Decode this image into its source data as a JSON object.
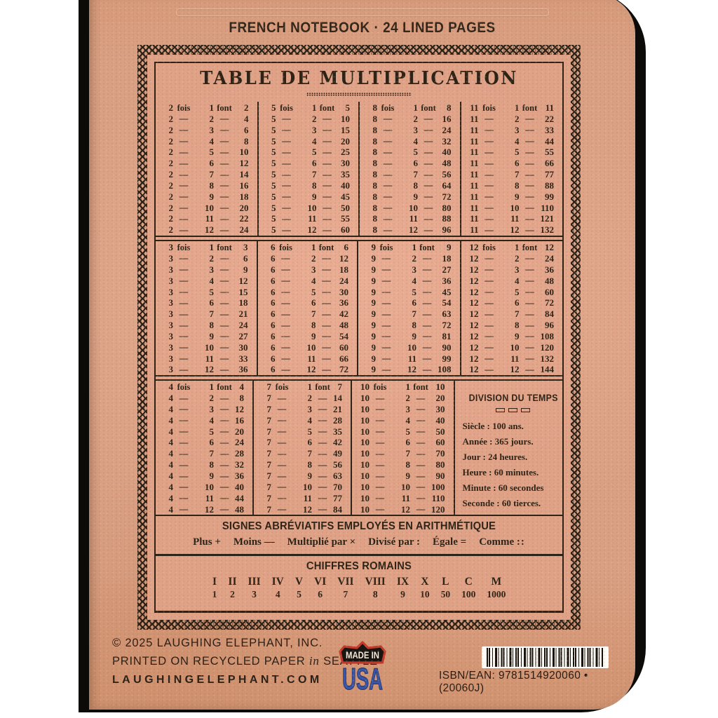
{
  "page": {
    "top_banner": "FRENCH NOTEBOOK · 24 LINED PAGES"
  },
  "card": {
    "title": "TABLE DE MULTIPLICATION",
    "word_times": "fois",
    "word_equals": "font",
    "dash": "—",
    "tables": [
      {
        "base": 2,
        "products": [
          2,
          4,
          6,
          8,
          10,
          12,
          14,
          16,
          18,
          20,
          22,
          24
        ]
      },
      {
        "base": 5,
        "products": [
          5,
          10,
          15,
          20,
          25,
          30,
          35,
          40,
          45,
          50,
          55,
          60
        ]
      },
      {
        "base": 8,
        "products": [
          8,
          16,
          24,
          32,
          40,
          48,
          56,
          64,
          72,
          80,
          88,
          96
        ]
      },
      {
        "base": 11,
        "products": [
          11,
          22,
          33,
          44,
          55,
          66,
          77,
          88,
          99,
          110,
          121,
          132
        ]
      },
      {
        "base": 3,
        "products": [
          3,
          6,
          9,
          12,
          15,
          18,
          21,
          24,
          27,
          30,
          33,
          36
        ]
      },
      {
        "base": 6,
        "products": [
          6,
          12,
          18,
          24,
          30,
          36,
          42,
          48,
          54,
          60,
          66,
          72
        ]
      },
      {
        "base": 9,
        "products": [
          9,
          18,
          27,
          36,
          45,
          54,
          63,
          72,
          81,
          90,
          99,
          108
        ]
      },
      {
        "base": 12,
        "products": [
          12,
          24,
          36,
          48,
          60,
          72,
          84,
          96,
          108,
          120,
          132,
          144
        ]
      },
      {
        "base": 4,
        "products": [
          4,
          8,
          12,
          16,
          20,
          24,
          28,
          32,
          36,
          40,
          44,
          48
        ]
      },
      {
        "base": 7,
        "products": [
          7,
          14,
          21,
          28,
          35,
          42,
          49,
          56,
          63,
          70,
          77,
          84
        ]
      },
      {
        "base": 10,
        "products": [
          10,
          20,
          30,
          40,
          50,
          60,
          70,
          80,
          90,
          100,
          110,
          120
        ]
      }
    ],
    "division_du_temps": {
      "title": "DIVISION DU TEMPS",
      "lines": [
        "Siècle : 100 ans.",
        "Année : 365 jours.",
        "Jour : 24 heures.",
        "Heure : 60 minutes.",
        "Minute : 60 secondes",
        "Seconde : 60 tierces."
      ]
    },
    "signes": {
      "title": "SIGNES ABRÉVIATIFS EMPLOYÉS EN ARITHMÉTIQUE",
      "items": [
        {
          "label": "Plus",
          "symbol": "+"
        },
        {
          "label": "Moins",
          "symbol": "—"
        },
        {
          "label": "Multiplié par",
          "symbol": "×"
        },
        {
          "label": "Divisé par",
          "symbol": ":"
        },
        {
          "label": "Égale",
          "symbol": "="
        },
        {
          "label": "Comme",
          "symbol": "::"
        }
      ]
    },
    "chiffres_romains": {
      "title": "CHIFFRES ROMAINS",
      "columns": [
        {
          "roman": "I",
          "value": "1"
        },
        {
          "roman": "II",
          "value": "2"
        },
        {
          "roman": "III",
          "value": "3"
        },
        {
          "roman": "IV",
          "value": "4"
        },
        {
          "roman": "V",
          "value": "5"
        },
        {
          "roman": "VI",
          "value": "6"
        },
        {
          "roman": "VII",
          "value": "7"
        },
        {
          "roman": "VIII",
          "value": "8"
        },
        {
          "roman": "IX",
          "value": "9"
        },
        {
          "roman": "X",
          "value": "10"
        },
        {
          "roman": "L",
          "value": "50"
        },
        {
          "roman": "C",
          "value": "100"
        },
        {
          "roman": "M",
          "value": "1000"
        }
      ]
    }
  },
  "footer": {
    "copyright": "© 2025 LAUGHING ELEPHANT, INC.",
    "printed_line": {
      "pre": "PRINTED ON RECYCLED PAPER ",
      "emph": "in",
      "post": " SEATTLE"
    },
    "website": "LAUGHINGELEPHANT.COM",
    "badge": {
      "top": "MADE IN",
      "bottom": "USA"
    },
    "isbn": "ISBN/EAN: 9781514920060 • (20060J)"
  },
  "colors": {
    "paper": "#daa083",
    "ink": "#2d2316",
    "cover_edge": "#0d0b08",
    "badge_red": "#c23a2b",
    "badge_blue": "#3a55a3"
  }
}
